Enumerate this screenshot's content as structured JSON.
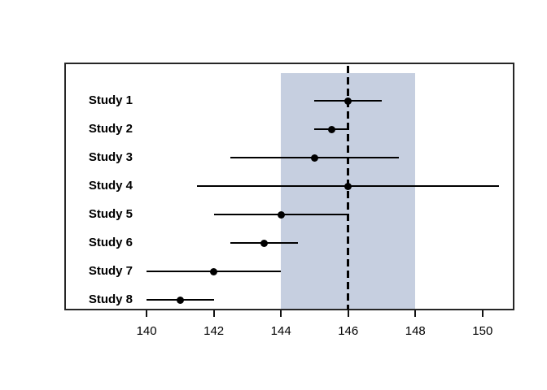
{
  "chart_data": {
    "type": "forest",
    "title": "",
    "xlabel": "",
    "ylabel": "",
    "grid": false,
    "legend": null,
    "xlim": [
      137.55,
      150.95
    ],
    "x_ticks": [
      "140",
      "142",
      "144",
      "146",
      "148",
      "150"
    ],
    "x_tick_values": [
      140,
      142,
      144,
      146,
      148,
      150
    ],
    "reference_line": 146,
    "shaded_region": {
      "from": 144,
      "to": 148
    },
    "colors": {
      "shaded_region": "#c6cfe0",
      "line": "#000000",
      "point": "#000000",
      "reference_line": "#000000",
      "border": "#262626",
      "background": "#ffffff"
    },
    "studies": [
      {
        "label": "Study 1",
        "estimate": 146,
        "ci_low": 145,
        "ci_high": 147
      },
      {
        "label": "Study 2",
        "estimate": 145.5,
        "ci_low": 145,
        "ci_high": 146
      },
      {
        "label": "Study 3",
        "estimate": 145,
        "ci_low": 142.5,
        "ci_high": 147.5
      },
      {
        "label": "Study 4",
        "estimate": 146,
        "ci_low": 141.5,
        "ci_high": 150.5
      },
      {
        "label": "Study 5",
        "estimate": 144,
        "ci_low": 142,
        "ci_high": 146
      },
      {
        "label": "Study 6",
        "estimate": 143.5,
        "ci_low": 142.5,
        "ci_high": 144.5
      },
      {
        "label": "Study 7",
        "estimate": 142,
        "ci_low": 140,
        "ci_high": 144
      },
      {
        "label": "Study 8",
        "estimate": 141,
        "ci_low": 140,
        "ci_high": 142
      }
    ]
  }
}
